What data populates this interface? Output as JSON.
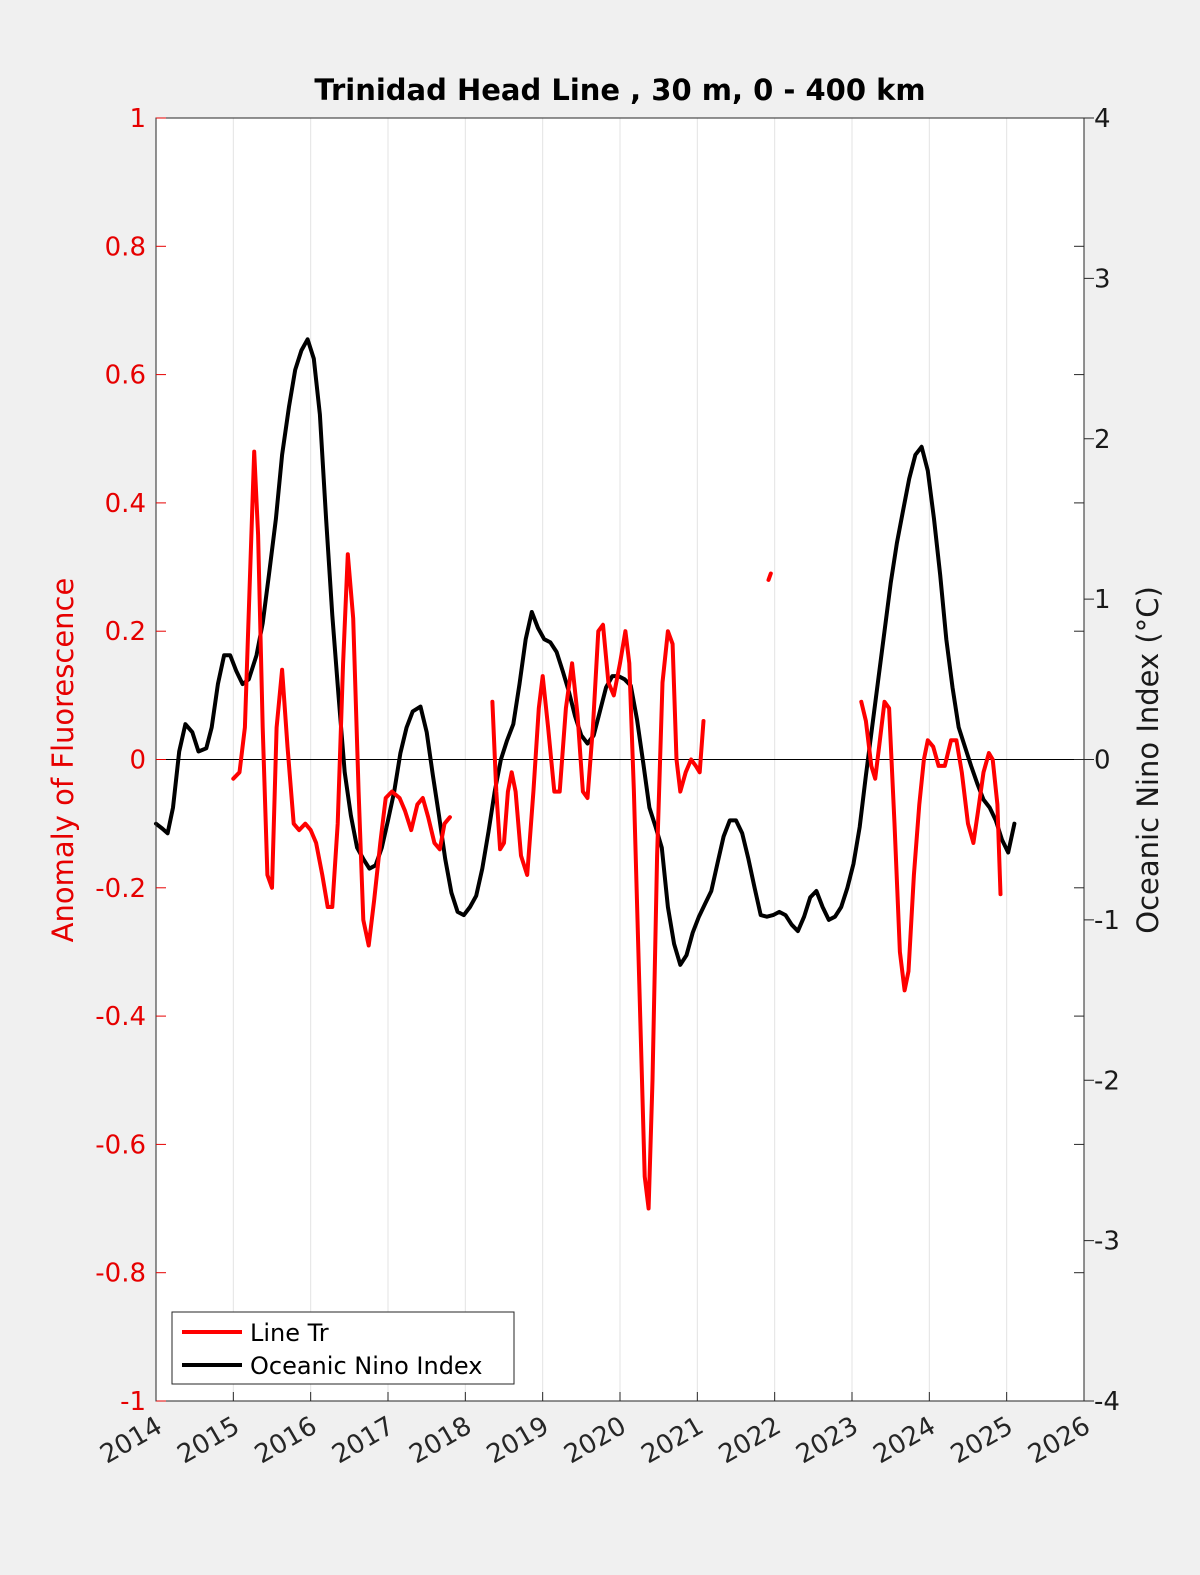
{
  "chart_data": {
    "type": "line",
    "title": "Trinidad Head Line , 30 m, 0 - 400 km",
    "xlabel": "",
    "ylabel_left": "Anomaly of Fluorescence",
    "ylabel_right": "Oceanic Nino Index (°C)",
    "xlim": [
      2014,
      2026
    ],
    "ylim_left": [
      -1,
      1
    ],
    "ylim_right": [
      -4,
      4
    ],
    "x_ticks": [
      "2014",
      "2015",
      "2016",
      "2017",
      "2018",
      "2019",
      "2020",
      "2021",
      "2022",
      "2023",
      "2024",
      "2025",
      "2026"
    ],
    "y_ticks_left": [
      "1",
      "0.8",
      "0.6",
      "0.4",
      "0.2",
      "0",
      "-0.2",
      "-0.4",
      "-0.6",
      "-0.8",
      "-1"
    ],
    "y_ticks_right": [
      "4",
      "3",
      "2",
      "1",
      "0",
      "-1",
      "-2",
      "-3",
      "-4"
    ],
    "grid": "vertical",
    "legend_position": "bottom-left",
    "colors": {
      "fluorescence": "#ff0000",
      "oni": "#000000",
      "axes_left": "#e60000",
      "axes_right": "#1a1a1a"
    },
    "series": [
      {
        "name": "Line Tr",
        "axis": "left",
        "color": "#ff0000",
        "segments": [
          [
            [
              2015.0,
              -0.03
            ],
            [
              2015.08,
              -0.02
            ],
            [
              2015.15,
              0.05
            ],
            [
              2015.22,
              0.3
            ],
            [
              2015.27,
              0.48
            ],
            [
              2015.32,
              0.35
            ],
            [
              2015.38,
              0.05
            ],
            [
              2015.44,
              -0.18
            ],
            [
              2015.5,
              -0.2
            ],
            [
              2015.56,
              0.05
            ],
            [
              2015.63,
              0.14
            ],
            [
              2015.7,
              0.02
            ],
            [
              2015.78,
              -0.1
            ],
            [
              2015.85,
              -0.11
            ],
            [
              2015.93,
              -0.1
            ],
            [
              2016.0,
              -0.11
            ],
            [
              2016.07,
              -0.13
            ],
            [
              2016.15,
              -0.18
            ],
            [
              2016.22,
              -0.23
            ],
            [
              2016.28,
              -0.23
            ],
            [
              2016.35,
              -0.1
            ],
            [
              2016.42,
              0.15
            ],
            [
              2016.48,
              0.32
            ],
            [
              2016.55,
              0.22
            ],
            [
              2016.62,
              -0.05
            ],
            [
              2016.68,
              -0.25
            ],
            [
              2016.75,
              -0.29
            ],
            [
              2016.82,
              -0.22
            ],
            [
              2016.9,
              -0.13
            ],
            [
              2016.97,
              -0.06
            ],
            [
              2017.05,
              -0.05
            ],
            [
              2017.15,
              -0.06
            ],
            [
              2017.22,
              -0.08
            ],
            [
              2017.3,
              -0.11
            ],
            [
              2017.38,
              -0.07
            ],
            [
              2017.45,
              -0.06
            ],
            [
              2017.52,
              -0.09
            ],
            [
              2017.6,
              -0.13
            ],
            [
              2017.67,
              -0.14
            ],
            [
              2017.73,
              -0.1
            ],
            [
              2017.8,
              -0.09
            ]
          ],
          [
            [
              2018.35,
              0.09
            ],
            [
              2018.4,
              -0.05
            ],
            [
              2018.45,
              -0.14
            ],
            [
              2018.5,
              -0.13
            ],
            [
              2018.55,
              -0.05
            ],
            [
              2018.6,
              -0.02
            ],
            [
              2018.65,
              -0.05
            ],
            [
              2018.72,
              -0.15
            ],
            [
              2018.8,
              -0.18
            ],
            [
              2018.88,
              -0.05
            ],
            [
              2018.95,
              0.08
            ],
            [
              2019.0,
              0.13
            ],
            [
              2019.07,
              0.05
            ],
            [
              2019.15,
              -0.05
            ],
            [
              2019.22,
              -0.05
            ],
            [
              2019.3,
              0.08
            ],
            [
              2019.38,
              0.15
            ],
            [
              2019.45,
              0.07
            ],
            [
              2019.52,
              -0.05
            ],
            [
              2019.58,
              -0.06
            ],
            [
              2019.65,
              0.05
            ],
            [
              2019.72,
              0.2
            ],
            [
              2019.78,
              0.21
            ],
            [
              2019.85,
              0.12
            ],
            [
              2019.92,
              0.1
            ],
            [
              2020.0,
              0.15
            ],
            [
              2020.07,
              0.2
            ],
            [
              2020.12,
              0.15
            ],
            [
              2020.18,
              -0.05
            ],
            [
              2020.25,
              -0.35
            ],
            [
              2020.32,
              -0.65
            ],
            [
              2020.37,
              -0.7
            ],
            [
              2020.42,
              -0.5
            ],
            [
              2020.48,
              -0.15
            ],
            [
              2020.55,
              0.12
            ],
            [
              2020.62,
              0.2
            ],
            [
              2020.68,
              0.18
            ],
            [
              2020.73,
              0.0
            ],
            [
              2020.78,
              -0.05
            ],
            [
              2020.85,
              -0.02
            ],
            [
              2020.92,
              0.0
            ],
            [
              2020.98,
              -0.01
            ],
            [
              2021.03,
              -0.02
            ],
            [
              2021.08,
              0.06
            ]
          ],
          [
            [
              2021.92,
              0.28
            ],
            [
              2021.95,
              0.29
            ]
          ],
          [
            [
              2023.12,
              0.09
            ],
            [
              2023.18,
              0.06
            ],
            [
              2023.25,
              -0.01
            ],
            [
              2023.3,
              -0.03
            ],
            [
              2023.35,
              0.02
            ],
            [
              2023.42,
              0.09
            ],
            [
              2023.48,
              0.08
            ],
            [
              2023.55,
              -0.1
            ],
            [
              2023.62,
              -0.3
            ],
            [
              2023.68,
              -0.36
            ],
            [
              2023.73,
              -0.33
            ],
            [
              2023.8,
              -0.18
            ],
            [
              2023.87,
              -0.07
            ],
            [
              2023.93,
              0.0
            ],
            [
              2023.98,
              0.03
            ],
            [
              2024.05,
              0.02
            ],
            [
              2024.12,
              -0.01
            ],
            [
              2024.2,
              -0.01
            ],
            [
              2024.28,
              0.03
            ],
            [
              2024.35,
              0.03
            ],
            [
              2024.42,
              -0.02
            ],
            [
              2024.5,
              -0.1
            ],
            [
              2024.57,
              -0.13
            ],
            [
              2024.63,
              -0.08
            ],
            [
              2024.7,
              -0.02
            ],
            [
              2024.77,
              0.01
            ],
            [
              2024.82,
              0.0
            ],
            [
              2024.88,
              -0.07
            ],
            [
              2024.92,
              -0.21
            ]
          ]
        ]
      },
      {
        "name": "Oceanic Nino Index",
        "axis": "right",
        "color": "#000000",
        "segments": [
          [
            [
              2014.0,
              -0.4
            ],
            [
              2014.08,
              -0.43
            ],
            [
              2014.15,
              -0.46
            ],
            [
              2014.22,
              -0.3
            ],
            [
              2014.3,
              0.05
            ],
            [
              2014.38,
              0.22
            ],
            [
              2014.47,
              0.17
            ],
            [
              2014.55,
              0.05
            ],
            [
              2014.65,
              0.07
            ],
            [
              2014.72,
              0.2
            ],
            [
              2014.8,
              0.47
            ],
            [
              2014.88,
              0.65
            ],
            [
              2014.96,
              0.65
            ],
            [
              2015.04,
              0.55
            ],
            [
              2015.12,
              0.47
            ],
            [
              2015.2,
              0.5
            ],
            [
              2015.3,
              0.65
            ],
            [
              2015.38,
              0.85
            ],
            [
              2015.46,
              1.15
            ],
            [
              2015.55,
              1.5
            ],
            [
              2015.63,
              1.9
            ],
            [
              2015.72,
              2.2
            ],
            [
              2015.8,
              2.43
            ],
            [
              2015.88,
              2.55
            ],
            [
              2015.96,
              2.62
            ],
            [
              2016.04,
              2.5
            ],
            [
              2016.12,
              2.15
            ],
            [
              2016.2,
              1.5
            ],
            [
              2016.28,
              0.9
            ],
            [
              2016.36,
              0.4
            ],
            [
              2016.44,
              -0.08
            ],
            [
              2016.52,
              -0.35
            ],
            [
              2016.6,
              -0.55
            ],
            [
              2016.68,
              -0.62
            ],
            [
              2016.76,
              -0.68
            ],
            [
              2016.84,
              -0.66
            ],
            [
              2016.92,
              -0.55
            ],
            [
              2017.0,
              -0.38
            ],
            [
              2017.08,
              -0.2
            ],
            [
              2017.16,
              0.04
            ],
            [
              2017.24,
              0.2
            ],
            [
              2017.32,
              0.3
            ],
            [
              2017.42,
              0.33
            ],
            [
              2017.5,
              0.17
            ],
            [
              2017.58,
              -0.1
            ],
            [
              2017.66,
              -0.35
            ],
            [
              2017.74,
              -0.62
            ],
            [
              2017.82,
              -0.83
            ],
            [
              2017.9,
              -0.95
            ],
            [
              2017.98,
              -0.97
            ],
            [
              2018.06,
              -0.92
            ],
            [
              2018.14,
              -0.85
            ],
            [
              2018.22,
              -0.68
            ],
            [
              2018.3,
              -0.45
            ],
            [
              2018.38,
              -0.2
            ],
            [
              2018.46,
              0.0
            ],
            [
              2018.54,
              0.12
            ],
            [
              2018.62,
              0.22
            ],
            [
              2018.7,
              0.47
            ],
            [
              2018.78,
              0.75
            ],
            [
              2018.86,
              0.92
            ],
            [
              2018.94,
              0.82
            ],
            [
              2019.02,
              0.75
            ],
            [
              2019.1,
              0.73
            ],
            [
              2019.18,
              0.67
            ],
            [
              2019.26,
              0.55
            ],
            [
              2019.34,
              0.42
            ],
            [
              2019.42,
              0.27
            ],
            [
              2019.5,
              0.15
            ],
            [
              2019.58,
              0.1
            ],
            [
              2019.66,
              0.15
            ],
            [
              2019.74,
              0.3
            ],
            [
              2019.82,
              0.45
            ],
            [
              2019.9,
              0.52
            ],
            [
              2019.98,
              0.52
            ],
            [
              2020.06,
              0.5
            ],
            [
              2020.14,
              0.46
            ],
            [
              2020.22,
              0.25
            ],
            [
              2020.3,
              -0.02
            ],
            [
              2020.38,
              -0.3
            ],
            [
              2020.46,
              -0.42
            ],
            [
              2020.54,
              -0.55
            ],
            [
              2020.62,
              -0.92
            ],
            [
              2020.7,
              -1.15
            ],
            [
              2020.78,
              -1.28
            ],
            [
              2020.86,
              -1.22
            ],
            [
              2020.94,
              -1.08
            ],
            [
              2021.02,
              -0.98
            ],
            [
              2021.1,
              -0.9
            ],
            [
              2021.18,
              -0.82
            ],
            [
              2021.26,
              -0.65
            ],
            [
              2021.34,
              -0.48
            ],
            [
              2021.42,
              -0.38
            ],
            [
              2021.5,
              -0.38
            ],
            [
              2021.58,
              -0.46
            ],
            [
              2021.66,
              -0.62
            ],
            [
              2021.74,
              -0.8
            ],
            [
              2021.82,
              -0.97
            ],
            [
              2021.9,
              -0.98
            ],
            [
              2021.98,
              -0.97
            ],
            [
              2022.06,
              -0.95
            ],
            [
              2022.14,
              -0.97
            ],
            [
              2022.22,
              -1.03
            ],
            [
              2022.3,
              -1.07
            ],
            [
              2022.38,
              -0.98
            ],
            [
              2022.46,
              -0.86
            ],
            [
              2022.54,
              -0.82
            ],
            [
              2022.62,
              -0.92
            ],
            [
              2022.7,
              -1.0
            ],
            [
              2022.78,
              -0.98
            ],
            [
              2022.86,
              -0.92
            ],
            [
              2022.94,
              -0.8
            ],
            [
              2023.02,
              -0.65
            ],
            [
              2023.1,
              -0.42
            ],
            [
              2023.18,
              -0.1
            ],
            [
              2023.26,
              0.2
            ],
            [
              2023.34,
              0.5
            ],
            [
              2023.42,
              0.8
            ],
            [
              2023.5,
              1.1
            ],
            [
              2023.58,
              1.35
            ],
            [
              2023.66,
              1.55
            ],
            [
              2023.74,
              1.75
            ],
            [
              2023.82,
              1.9
            ],
            [
              2023.9,
              1.95
            ],
            [
              2023.98,
              1.8
            ],
            [
              2024.06,
              1.5
            ],
            [
              2024.14,
              1.15
            ],
            [
              2024.22,
              0.75
            ],
            [
              2024.3,
              0.45
            ],
            [
              2024.38,
              0.2
            ],
            [
              2024.46,
              0.08
            ],
            [
              2024.54,
              -0.04
            ],
            [
              2024.62,
              -0.15
            ],
            [
              2024.7,
              -0.25
            ],
            [
              2024.78,
              -0.3
            ],
            [
              2024.86,
              -0.38
            ],
            [
              2024.94,
              -0.5
            ],
            [
              2025.02,
              -0.58
            ],
            [
              2025.1,
              -0.4
            ]
          ]
        ]
      }
    ]
  }
}
